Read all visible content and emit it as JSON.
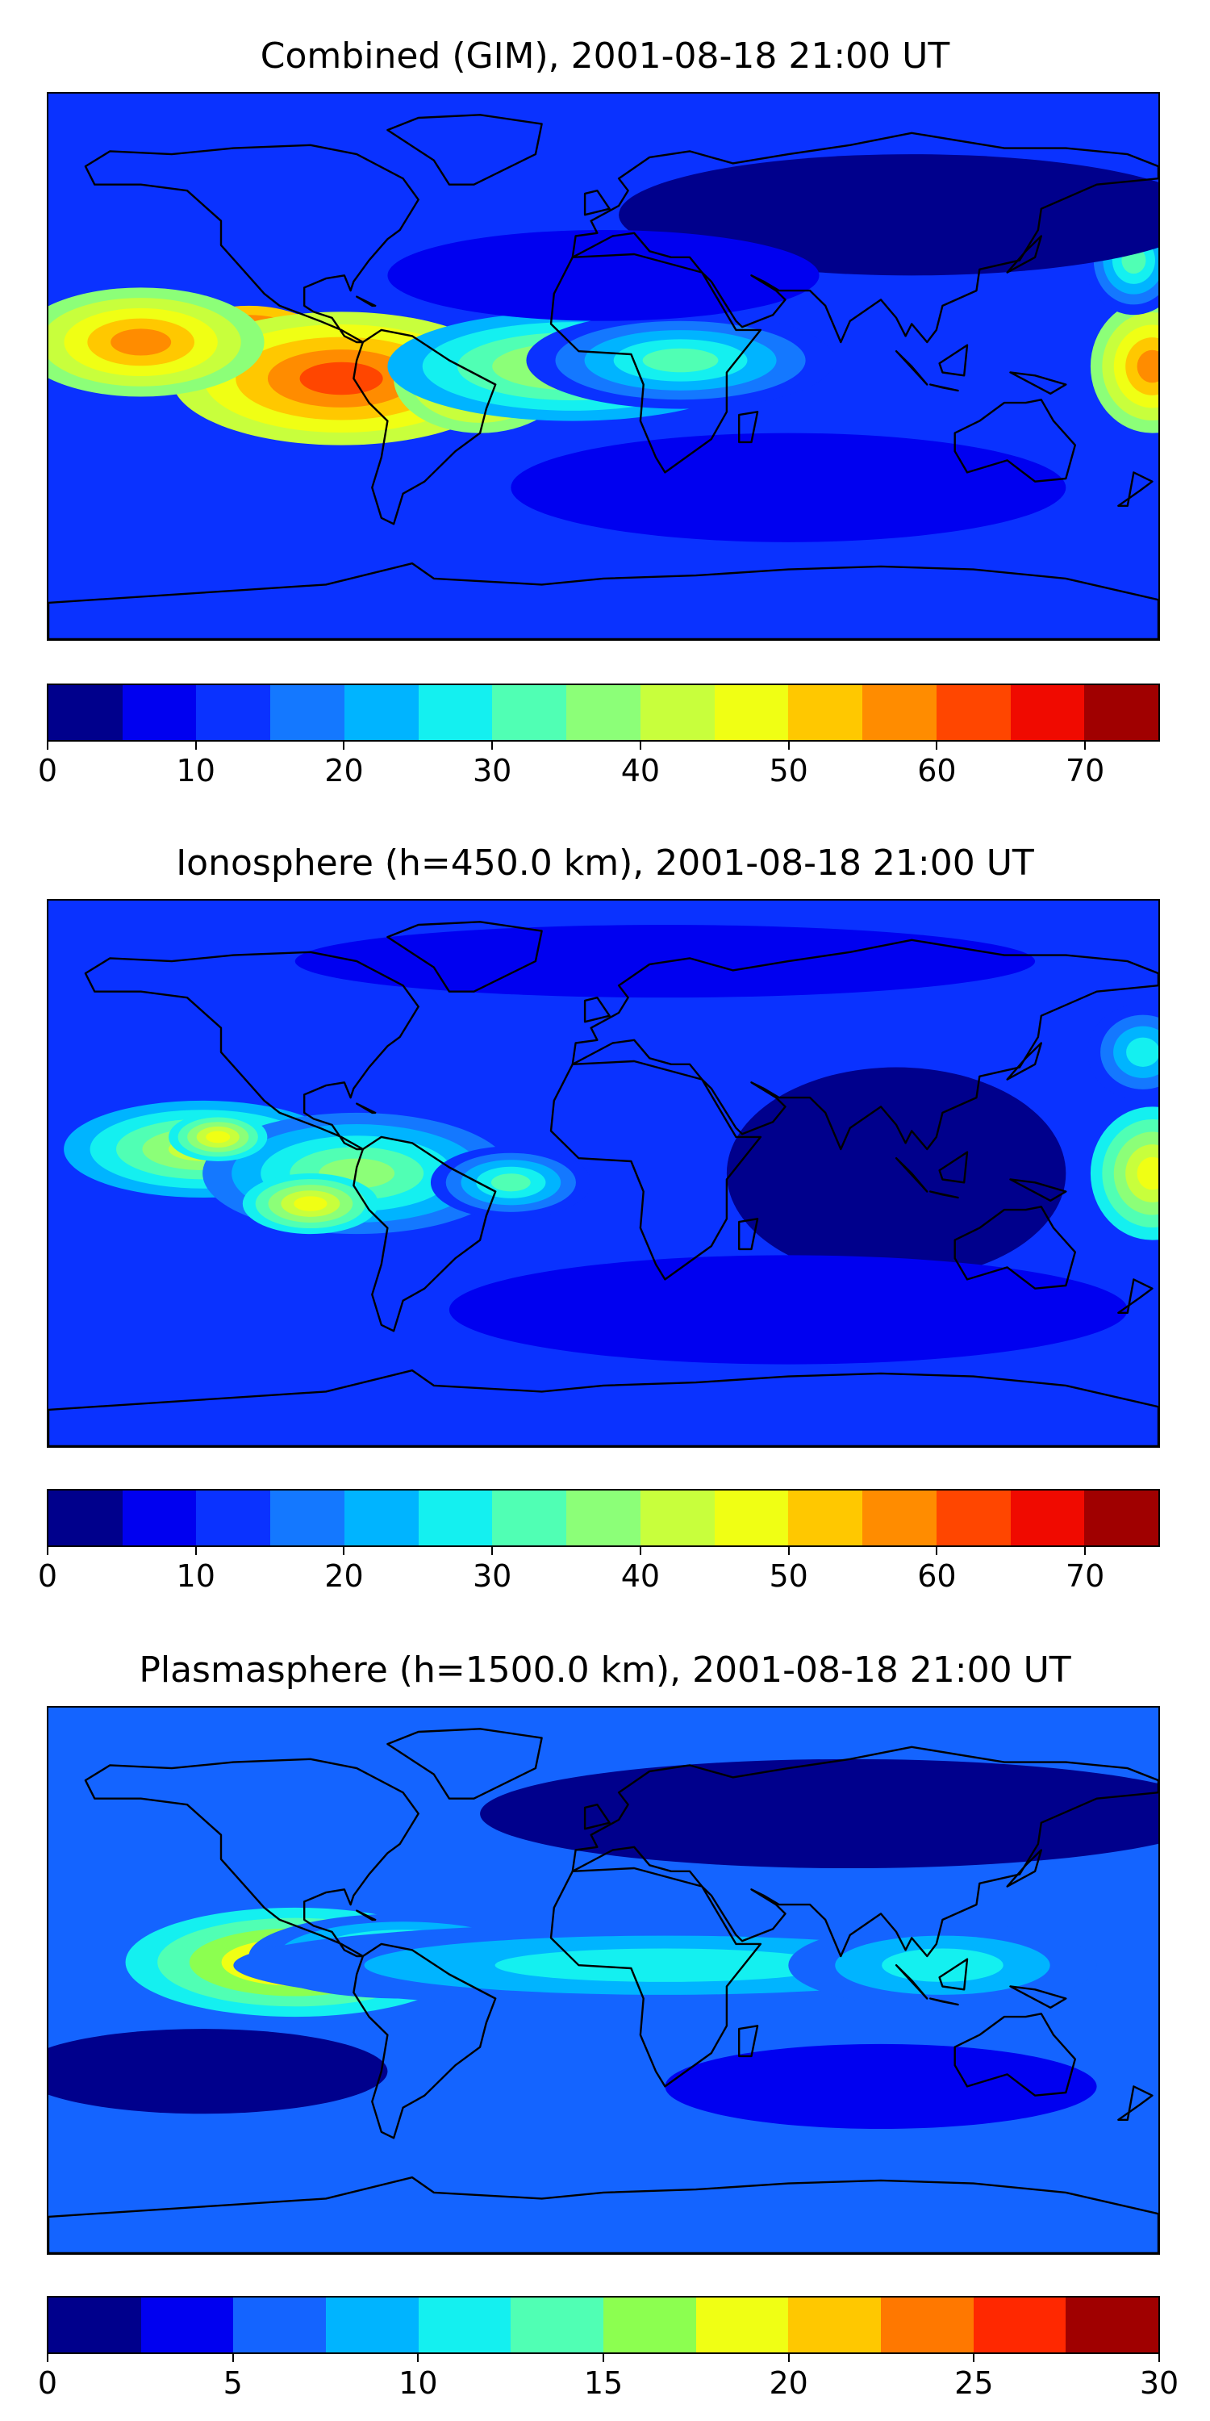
{
  "panels": [
    {
      "id": "combined",
      "title": "Combined (GIM), 2001-08-18 21:00 UT",
      "colorbar": {
        "min": 0,
        "max": 75,
        "step": 5,
        "tick_values": [
          0,
          10,
          20,
          30,
          40,
          50,
          60,
          70
        ],
        "tick_labels": [
          "0",
          "10",
          "20",
          "30",
          "40",
          "50",
          "60",
          "70"
        ],
        "colors": [
          "#00008c",
          "#0000f0",
          "#0a32ff",
          "#1478ff",
          "#00b4ff",
          "#14f0f0",
          "#50ffb4",
          "#8cff78",
          "#c8ff3c",
          "#f0ff14",
          "#ffc800",
          "#ff8c00",
          "#ff4600",
          "#f00a00",
          "#a00000"
        ]
      },
      "features": [
        {
          "lon": -115,
          "lat": 4,
          "value": 72,
          "w": 28,
          "h": 16
        },
        {
          "lon": -85,
          "lat": -4,
          "value": 64,
          "w": 55,
          "h": 22
        },
        {
          "lon": -40,
          "lat": -4,
          "value": 58,
          "w": 28,
          "h": 18
        },
        {
          "lon": -10,
          "lat": 0,
          "value": 44,
          "w": 60,
          "h": 18
        },
        {
          "lon": 25,
          "lat": 2,
          "value": 30,
          "w": 50,
          "h": 16
        },
        {
          "lon": -150,
          "lat": 8,
          "value": 58,
          "w": 40,
          "h": 18
        },
        {
          "lon": 178,
          "lat": 0,
          "value": 56,
          "w": 20,
          "h": 22
        },
        {
          "lon": 172,
          "lat": 35,
          "value": 32,
          "w": 16,
          "h": 18
        },
        {
          "lon": 100,
          "lat": 50,
          "value": 3,
          "w": 95,
          "h": 20
        },
        {
          "lon": 60,
          "lat": -40,
          "value": 5,
          "w": 90,
          "h": 18
        },
        {
          "lon": 0,
          "lat": 30,
          "value": 8,
          "w": 70,
          "h": 15
        }
      ]
    },
    {
      "id": "ionosphere",
      "title": "Ionosphere  (h=450.0 km), 2001-08-18 21:00 UT",
      "colorbar": {
        "min": 0,
        "max": 75,
        "step": 5,
        "tick_values": [
          0,
          10,
          20,
          30,
          40,
          50,
          60,
          70
        ],
        "tick_labels": [
          "0",
          "10",
          "20",
          "30",
          "40",
          "50",
          "60",
          "70"
        ],
        "colors": [
          "#00008c",
          "#0000f0",
          "#0a32ff",
          "#1478ff",
          "#00b4ff",
          "#14f0f0",
          "#50ffb4",
          "#8cff78",
          "#c8ff3c",
          "#f0ff14",
          "#ffc800",
          "#ff8c00",
          "#ff4600",
          "#f00a00",
          "#a00000"
        ]
      },
      "features": [
        {
          "lon": -130,
          "lat": 8,
          "value": 44,
          "w": 45,
          "h": 16
        },
        {
          "lon": -80,
          "lat": 0,
          "value": 38,
          "w": 50,
          "h": 20
        },
        {
          "lon": -95,
          "lat": -10,
          "value": 48,
          "w": 22,
          "h": 10
        },
        {
          "lon": -125,
          "lat": 12,
          "value": 49,
          "w": 16,
          "h": 8
        },
        {
          "lon": -30,
          "lat": -3,
          "value": 34,
          "w": 26,
          "h": 12
        },
        {
          "lon": 178,
          "lat": 0,
          "value": 46,
          "w": 20,
          "h": 22
        },
        {
          "lon": 175,
          "lat": 40,
          "value": 26,
          "w": 18,
          "h": 16
        },
        {
          "lon": 95,
          "lat": 0,
          "value": 3,
          "w": 55,
          "h": 35
        },
        {
          "lon": 60,
          "lat": -45,
          "value": 4,
          "w": 110,
          "h": 18
        },
        {
          "lon": 20,
          "lat": 70,
          "value": 6,
          "w": 120,
          "h": 12
        }
      ]
    },
    {
      "id": "plasmasphere",
      "title": "Plasmasphere (h=1500.0 km), 2001-08-18 21:00 UT",
      "colorbar": {
        "min": 0,
        "max": 30,
        "step": 2.5,
        "tick_values": [
          0,
          5,
          10,
          15,
          20,
          25,
          30
        ],
        "tick_labels": [
          "0",
          "5",
          "10",
          "15",
          "20",
          "25",
          "30"
        ],
        "colors": [
          "#00008c",
          "#0000f0",
          "#1464ff",
          "#00b4ff",
          "#14f0f0",
          "#50ffb4",
          "#8cff50",
          "#f0ff14",
          "#ffc800",
          "#ff7800",
          "#ff2800",
          "#a00000"
        ]
      },
      "features": [
        {
          "lon": -110,
          "lat": 10,
          "value": 26,
          "w": 30,
          "h": 12
        },
        {
          "lon": -100,
          "lat": 6,
          "value": 21,
          "w": 55,
          "h": 18
        },
        {
          "lon": -65,
          "lat": 8,
          "value": 17,
          "w": 50,
          "h": 14
        },
        {
          "lon": 20,
          "lat": 5,
          "value": 11,
          "w": 140,
          "h": 14
        },
        {
          "lon": 110,
          "lat": 5,
          "value": 11,
          "w": 50,
          "h": 14
        },
        {
          "lon": 80,
          "lat": 55,
          "value": 1,
          "w": 120,
          "h": 18
        },
        {
          "lon": -130,
          "lat": -30,
          "value": 1,
          "w": 60,
          "h": 14
        },
        {
          "lon": 90,
          "lat": -35,
          "value": 2,
          "w": 70,
          "h": 14
        }
      ]
    }
  ]
}
